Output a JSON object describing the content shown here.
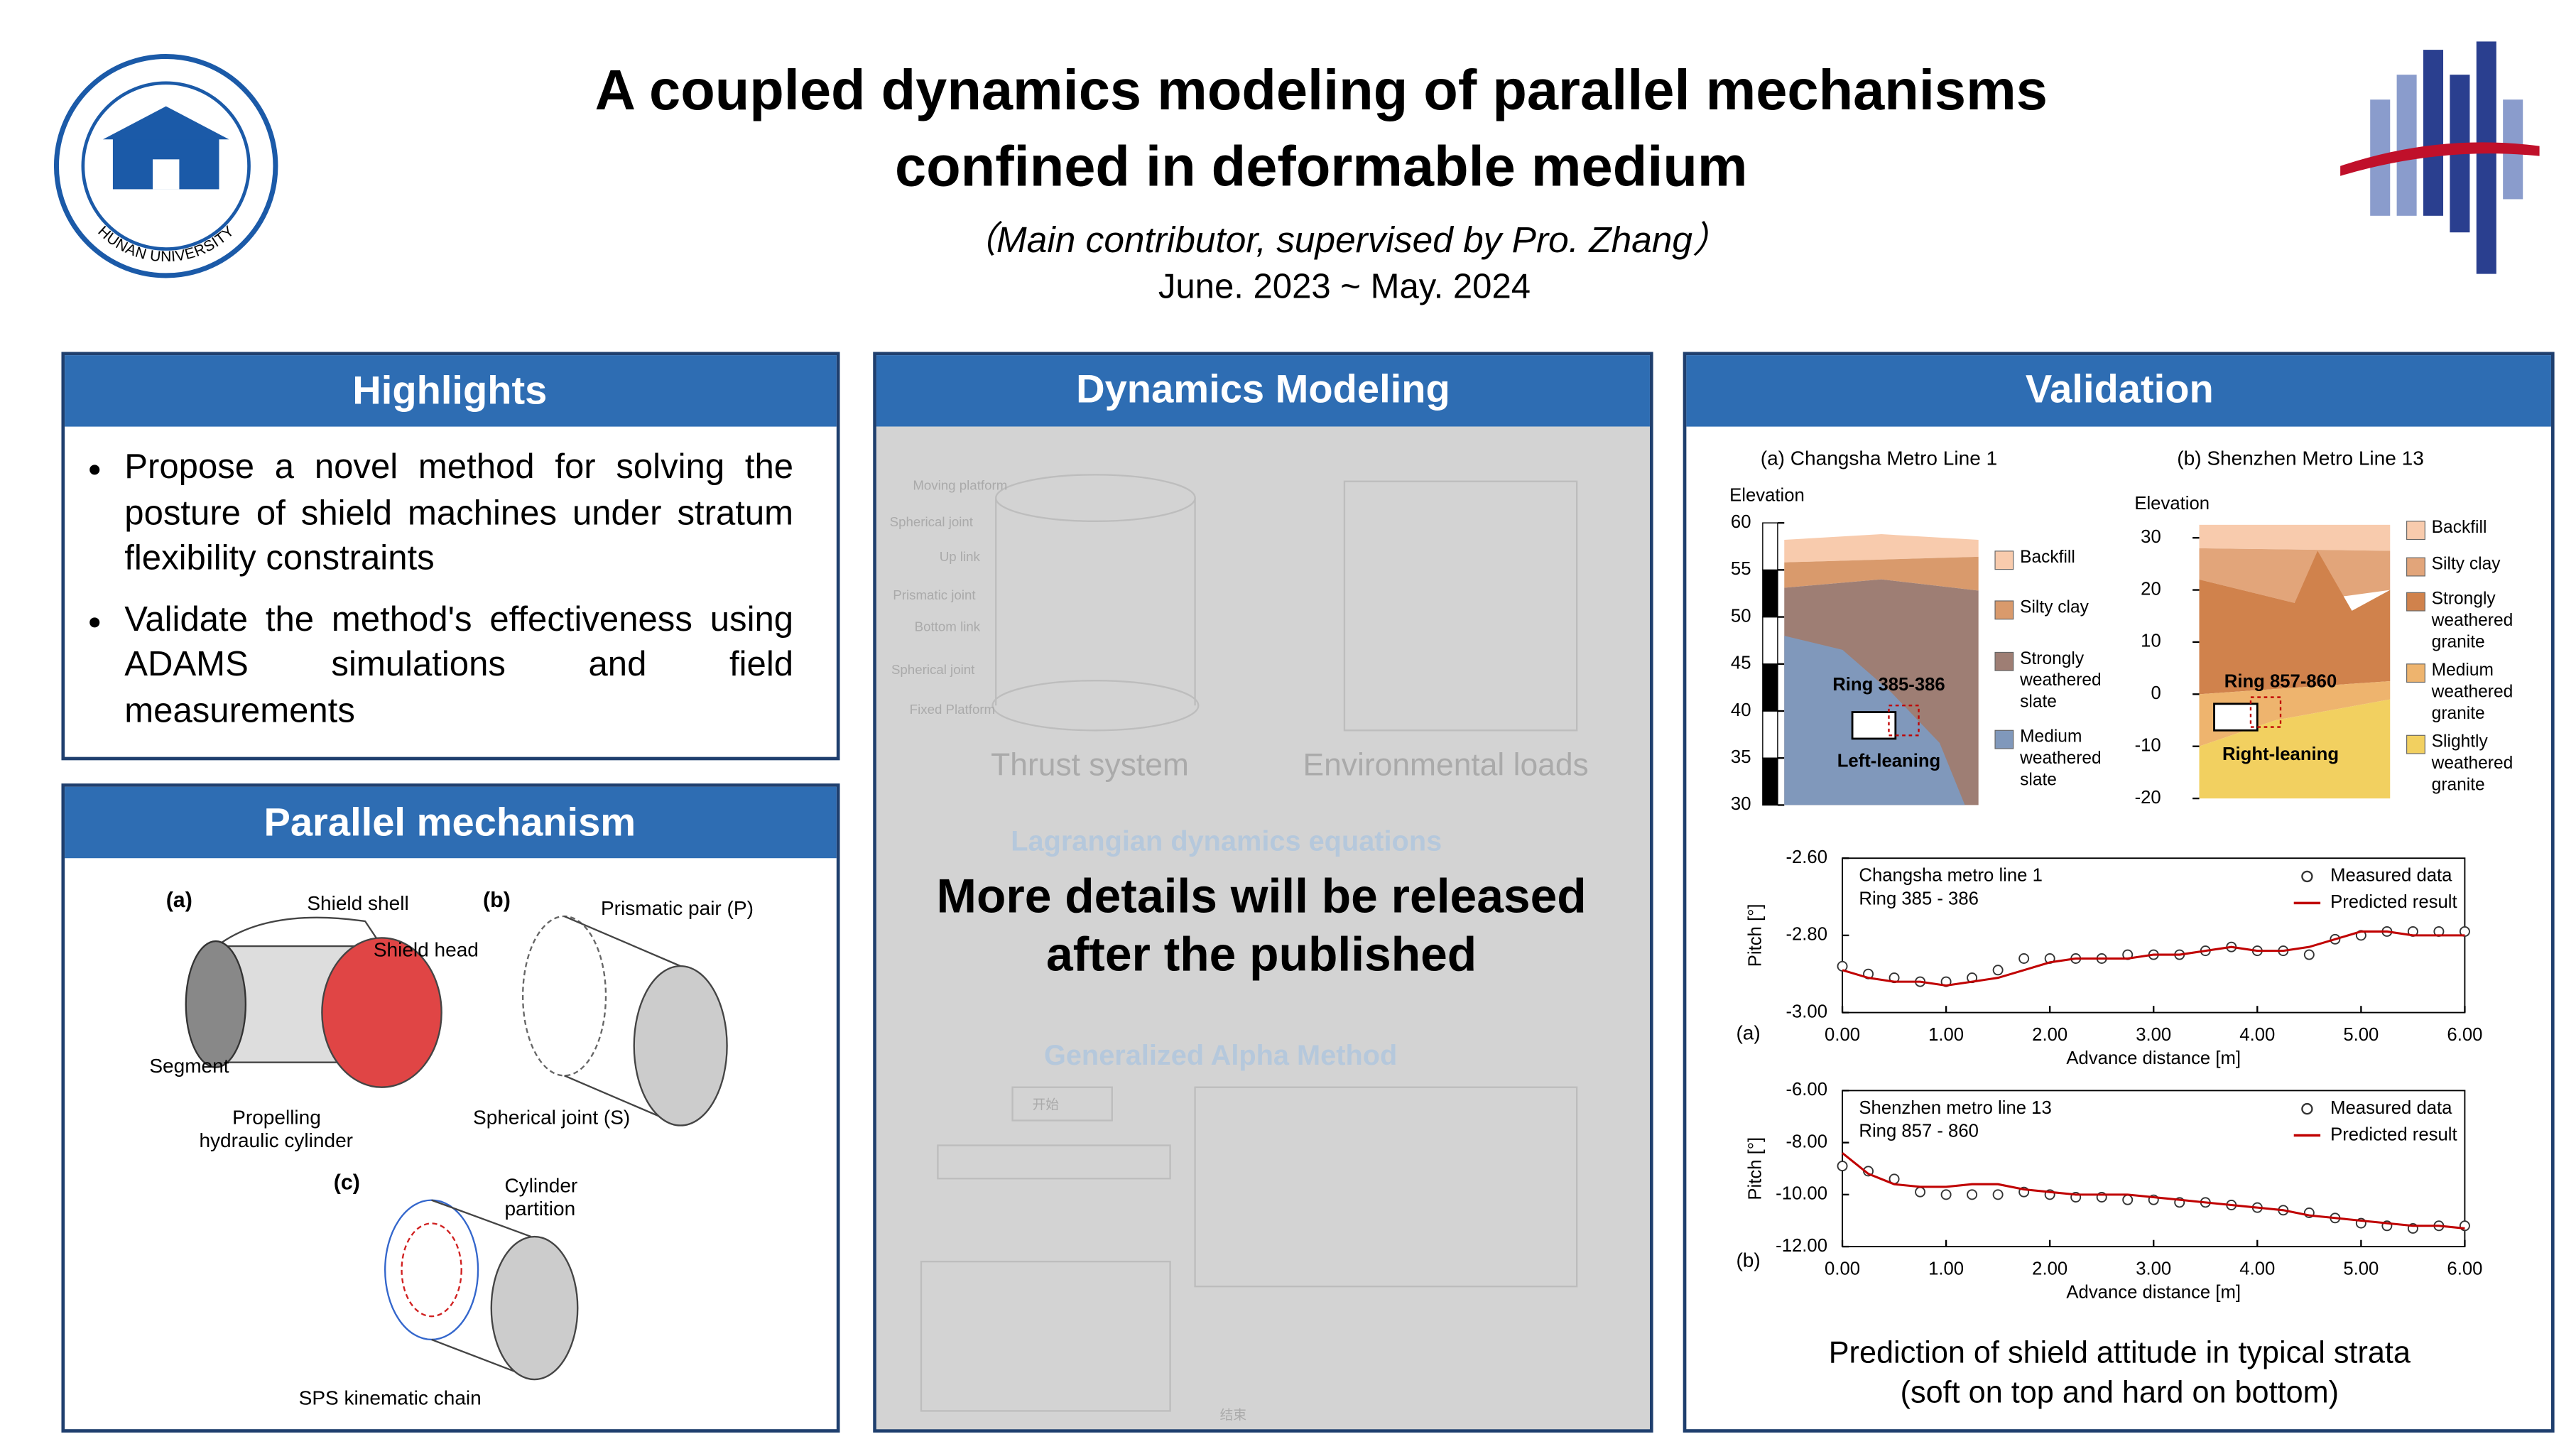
{
  "header": {
    "title": [
      "A coupled dynamics modeling of parallel mechanisms",
      "confined in deformable medium"
    ],
    "subtitle": "（Main contributor, supervised by Pro. Zhang）",
    "date": "June. 2023 ~ May. 2024",
    "logo_text": "HUNAN UNIVERSITY"
  },
  "highlights": {
    "title": "Highlights",
    "items": [
      "Propose a novel method for solving the posture of shield machines under stratum flexibility constraints",
      "Validate the method's effectiveness using ADAMS simulations and field measurements"
    ]
  },
  "parallel_mechanism": {
    "title": "Parallel mechanism",
    "labels": [
      "(a)",
      "Shield shell",
      "Shield head",
      "Segment",
      "Propelling",
      "hydraulic cylinder",
      "(b)",
      "Prismatic pair (P)",
      "Spherical joint (S)",
      "(c)",
      "Cylinder",
      "partition",
      "SPS kinematic chain"
    ]
  },
  "dynamics_modeling": {
    "title": "Dynamics Modeling",
    "figure_labels": [
      "Moving platform",
      "Spherical joint",
      "Up link",
      "Prismatic joint",
      "Bottom link",
      "Spherical joint",
      "Fixed Platform",
      "Thrust system",
      "Environmental loads",
      "Lagrangian dynamics equations",
      "Generalized Alpha Method",
      "开始",
      "结束"
    ],
    "notice": [
      "More details will be released",
      "after the published"
    ]
  },
  "validation": {
    "title": "Validation",
    "strata": [
      {
        "caption": "(a) Changsha Metro Line 1",
        "axis_label": "Elevation",
        "ylim": [
          30,
          60
        ],
        "yticks": [
          30,
          35,
          40,
          45,
          50,
          55,
          60
        ],
        "layers": [
          {
            "name": "Backfill",
            "color": "#f8cbad"
          },
          {
            "name": "Silty clay",
            "color": "#d99a6c"
          },
          {
            "name": "Strongly weathered slate",
            "color": "#9e7e74"
          },
          {
            "name": "Medium weathered slate",
            "color": "#8098bb"
          }
        ],
        "ring": "Ring 385-386",
        "lean": "Left-leaning"
      },
      {
        "caption": "(b) Shenzhen Metro Line 13",
        "axis_label": "Elevation",
        "ylim": [
          -20,
          30
        ],
        "yticks": [
          -20,
          -10,
          0,
          10,
          20,
          30
        ],
        "layers": [
          {
            "name": "Backfill",
            "color": "#f8cbad"
          },
          {
            "name": "Silty clay",
            "color": "#e2a57a"
          },
          {
            "name": "Strongly weathered granite",
            "color": "#d0824c"
          },
          {
            "name": "Medium weathered granite",
            "color": "#eeb46e"
          },
          {
            "name": "Slightly weathered granite",
            "color": "#f2d060"
          }
        ],
        "ring": "Ring 857-860",
        "lean": "Right-leaning"
      }
    ],
    "pitch": [
      {
        "type": "line",
        "label": "(a)",
        "title": [
          "Changsha metro line 1",
          "Ring 385 - 386"
        ],
        "xlabel": "Advance distance [m]",
        "ylabel": "Pitch [°]",
        "xlim": [
          0,
          6
        ],
        "ylim": [
          -3,
          -2.6
        ],
        "xticks": [
          {
            "value": 0,
            "label": "0.00"
          },
          {
            "value": 1,
            "label": "1.00"
          },
          {
            "value": 2,
            "label": "2.00"
          },
          {
            "value": 3,
            "label": "3.00"
          },
          {
            "value": 4,
            "label": "4.00"
          },
          {
            "value": 5,
            "label": "5.00"
          },
          {
            "value": 6,
            "label": "6.00"
          }
        ],
        "yticks": [
          {
            "value": -3,
            "label": "-3.00"
          },
          {
            "value": -2.8,
            "label": "-2.80"
          },
          {
            "value": -2.6,
            "label": "-2.60"
          }
        ],
        "x": [
          0,
          0.25,
          0.5,
          0.75,
          1,
          1.25,
          1.5,
          1.75,
          2,
          2.25,
          2.5,
          2.75,
          3,
          3.25,
          3.5,
          3.75,
          4,
          4.25,
          4.5,
          4.75,
          5,
          5.25,
          5.5,
          5.75,
          6
        ],
        "series": [
          {
            "name": "Measured data",
            "color": "#333333",
            "marker": "circle",
            "values": [
              -2.88,
              -2.9,
              -2.91,
              -2.92,
              -2.92,
              -2.91,
              -2.89,
              -2.86,
              -2.86,
              -2.86,
              -2.86,
              -2.85,
              -2.85,
              -2.85,
              -2.84,
              -2.83,
              -2.84,
              -2.84,
              -2.85,
              -2.81,
              -2.8,
              -2.79,
              -2.79,
              -2.79,
              -2.79
            ]
          },
          {
            "name": "Predicted result",
            "color": "#c00000",
            "values": [
              -2.89,
              -2.91,
              -2.92,
              -2.92,
              -2.93,
              -2.92,
              -2.91,
              -2.89,
              -2.87,
              -2.86,
              -2.86,
              -2.86,
              -2.85,
              -2.85,
              -2.84,
              -2.83,
              -2.84,
              -2.84,
              -2.83,
              -2.81,
              -2.79,
              -2.79,
              -2.8,
              -2.8,
              -2.8
            ]
          }
        ]
      },
      {
        "type": "line",
        "label": "(b)",
        "title": [
          "Shenzhen metro line 13",
          "Ring 857 - 860"
        ],
        "xlabel": "Advance distance [m]",
        "ylabel": "Pitch [°]",
        "xlim": [
          0,
          6
        ],
        "ylim": [
          -12,
          -6
        ],
        "xticks": [
          {
            "value": 0,
            "label": "0.00"
          },
          {
            "value": 1,
            "label": "1.00"
          },
          {
            "value": 2,
            "label": "2.00"
          },
          {
            "value": 3,
            "label": "3.00"
          },
          {
            "value": 4,
            "label": "4.00"
          },
          {
            "value": 5,
            "label": "5.00"
          },
          {
            "value": 6,
            "label": "6.00"
          }
        ],
        "yticks": [
          {
            "value": -12,
            "label": "-12.00"
          },
          {
            "value": -10,
            "label": "-10.00"
          },
          {
            "value": -8,
            "label": "-8.00"
          },
          {
            "value": -6,
            "label": "-6.00"
          }
        ],
        "x": [
          0,
          0.25,
          0.5,
          0.75,
          1,
          1.25,
          1.5,
          1.75,
          2,
          2.25,
          2.5,
          2.75,
          3,
          3.25,
          3.5,
          3.75,
          4,
          4.25,
          4.5,
          4.75,
          5,
          5.25,
          5.5,
          5.75,
          6
        ],
        "series": [
          {
            "name": "Measured data",
            "color": "#333333",
            "marker": "circle",
            "values": [
              -8.9,
              -9.1,
              -9.4,
              -9.9,
              -10,
              -10,
              -10,
              -9.9,
              -10,
              -10.1,
              -10.1,
              -10.2,
              -10.2,
              -10.3,
              -10.3,
              -10.4,
              -10.5,
              -10.6,
              -10.7,
              -10.9,
              -11.1,
              -11.2,
              -11.3,
              -11.2,
              -11.2
            ]
          },
          {
            "name": "Predicted result",
            "color": "#c00000",
            "values": [
              -8.4,
              -9.2,
              -9.6,
              -9.7,
              -9.7,
              -9.6,
              -9.6,
              -9.8,
              -9.9,
              -10,
              -10,
              -10,
              -10.1,
              -10.2,
              -10.3,
              -10.4,
              -10.5,
              -10.6,
              -10.8,
              -10.9,
              -11,
              -11.1,
              -11.2,
              -11.2,
              -11.3
            ]
          }
        ]
      }
    ],
    "caption": [
      "Prediction of shield attitude in typical strata",
      "(soft on top and hard on bottom)"
    ]
  }
}
